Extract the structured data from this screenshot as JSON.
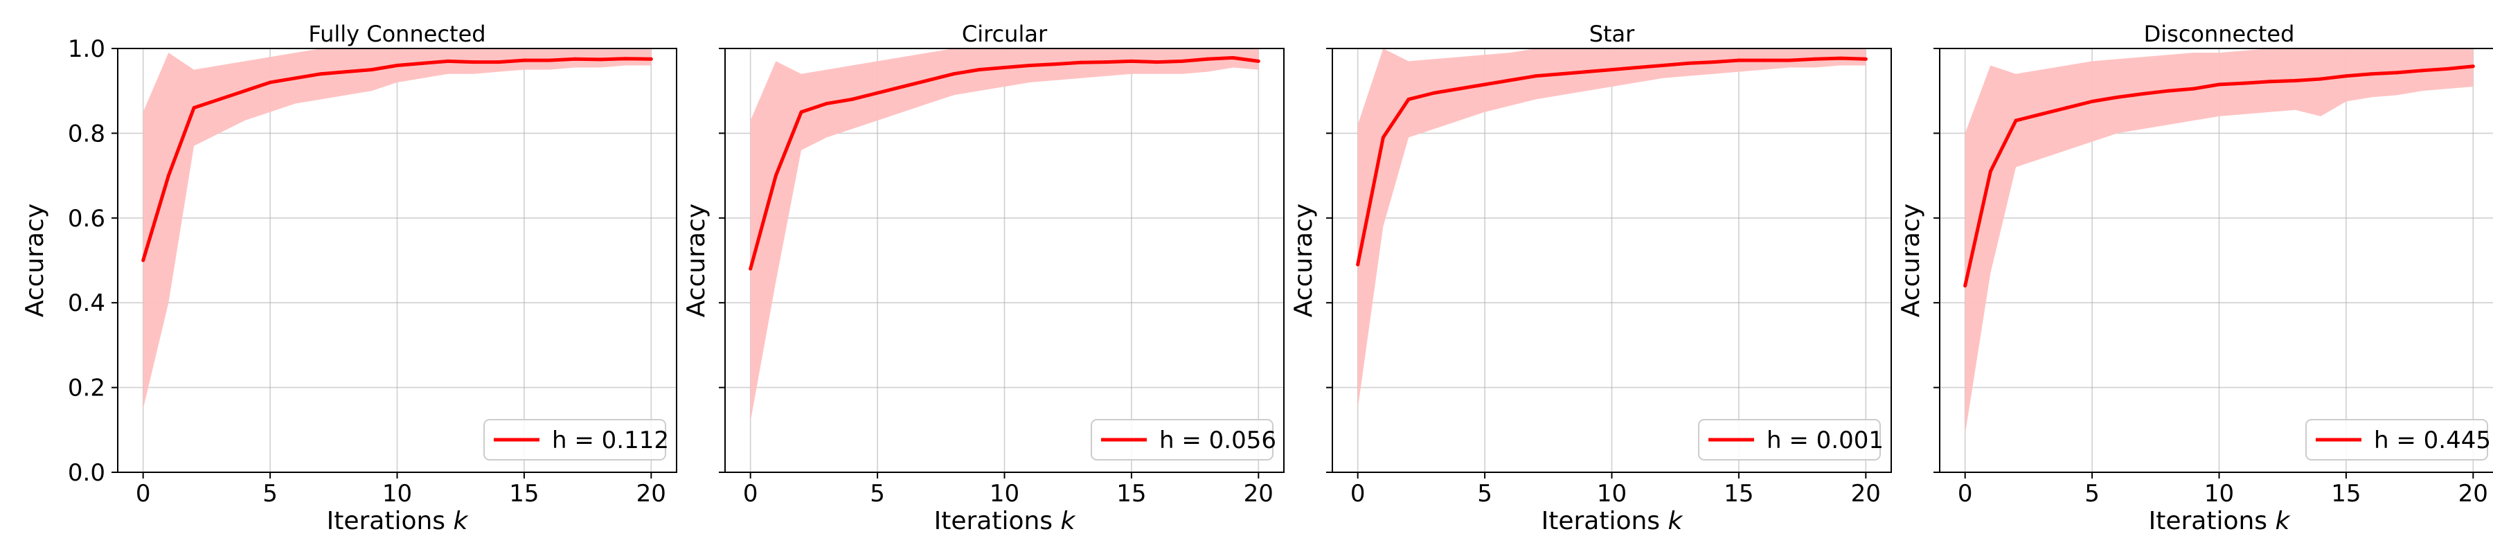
{
  "chart_data": [
    {
      "type": "line",
      "title": "Fully Connected",
      "xlabel": "Iterations",
      "xlabel_var": "k",
      "ylabel": "Accuracy",
      "xlim": [
        -1,
        21
      ],
      "ylim": [
        0,
        1
      ],
      "xticks": [
        0,
        5,
        10,
        15,
        20
      ],
      "yticks": [
        0.0,
        0.2,
        0.4,
        0.6,
        0.8,
        1.0
      ],
      "ytick_labels_visible": true,
      "grid": true,
      "legend_position": "lower-right",
      "series": [
        {
          "name": "h = 0.112",
          "color": "#ff0000",
          "band_color": "#ffbfbf",
          "x": [
            0,
            1,
            2,
            3,
            4,
            5,
            6,
            7,
            8,
            9,
            10,
            11,
            12,
            13,
            14,
            15,
            16,
            17,
            18,
            19,
            20
          ],
          "y": [
            0.5,
            0.7,
            0.86,
            0.88,
            0.9,
            0.92,
            0.93,
            0.94,
            0.945,
            0.95,
            0.96,
            0.965,
            0.97,
            0.968,
            0.968,
            0.972,
            0.972,
            0.975,
            0.974,
            0.976,
            0.975
          ],
          "lower": [
            0.15,
            0.4,
            0.77,
            0.8,
            0.83,
            0.85,
            0.87,
            0.88,
            0.89,
            0.9,
            0.92,
            0.93,
            0.94,
            0.94,
            0.945,
            0.95,
            0.95,
            0.955,
            0.955,
            0.96,
            0.96
          ],
          "upper": [
            0.85,
            0.99,
            0.95,
            0.96,
            0.97,
            0.98,
            0.99,
            1.0,
            1.0,
            1.0,
            1.0,
            1.0,
            1.0,
            1.0,
            1.0,
            1.0,
            1.0,
            1.0,
            1.0,
            1.0,
            1.0
          ]
        }
      ]
    },
    {
      "type": "line",
      "title": "Circular",
      "xlabel": "Iterations",
      "xlabel_var": "k",
      "ylabel": "Accuracy",
      "xlim": [
        -1,
        21
      ],
      "ylim": [
        0,
        1
      ],
      "xticks": [
        0,
        5,
        10,
        15,
        20
      ],
      "yticks": [
        0.0,
        0.2,
        0.4,
        0.6,
        0.8,
        1.0
      ],
      "ytick_labels_visible": false,
      "grid": true,
      "legend_position": "lower-right",
      "series": [
        {
          "name": "h = 0.056",
          "color": "#ff0000",
          "band_color": "#ffbfbf",
          "x": [
            0,
            1,
            2,
            3,
            4,
            5,
            6,
            7,
            8,
            9,
            10,
            11,
            12,
            13,
            14,
            15,
            16,
            17,
            18,
            19,
            20
          ],
          "y": [
            0.48,
            0.7,
            0.85,
            0.87,
            0.88,
            0.895,
            0.91,
            0.925,
            0.94,
            0.95,
            0.955,
            0.96,
            0.963,
            0.967,
            0.968,
            0.97,
            0.968,
            0.97,
            0.975,
            0.978,
            0.97
          ],
          "lower": [
            0.12,
            0.45,
            0.76,
            0.79,
            0.81,
            0.83,
            0.85,
            0.87,
            0.89,
            0.9,
            0.91,
            0.92,
            0.925,
            0.93,
            0.935,
            0.94,
            0.94,
            0.94,
            0.945,
            0.955,
            0.95
          ],
          "upper": [
            0.83,
            0.97,
            0.94,
            0.95,
            0.96,
            0.97,
            0.98,
            0.99,
            1.0,
            1.0,
            1.0,
            1.0,
            1.0,
            1.0,
            1.0,
            1.0,
            1.0,
            1.0,
            1.0,
            1.0,
            1.0
          ]
        }
      ]
    },
    {
      "type": "line",
      "title": "Star",
      "xlabel": "Iterations",
      "xlabel_var": "k",
      "ylabel": "Accuracy",
      "xlim": [
        -1,
        21
      ],
      "ylim": [
        0,
        1
      ],
      "xticks": [
        0,
        5,
        10,
        15,
        20
      ],
      "yticks": [
        0.0,
        0.2,
        0.4,
        0.6,
        0.8,
        1.0
      ],
      "ytick_labels_visible": false,
      "grid": true,
      "legend_position": "lower-right",
      "series": [
        {
          "name": "h = 0.001",
          "color": "#ff0000",
          "band_color": "#ffbfbf",
          "x": [
            0,
            1,
            2,
            3,
            4,
            5,
            6,
            7,
            8,
            9,
            10,
            11,
            12,
            13,
            14,
            15,
            16,
            17,
            18,
            19,
            20
          ],
          "y": [
            0.49,
            0.79,
            0.88,
            0.895,
            0.905,
            0.915,
            0.925,
            0.935,
            0.94,
            0.945,
            0.95,
            0.955,
            0.96,
            0.965,
            0.968,
            0.972,
            0.972,
            0.972,
            0.975,
            0.977,
            0.975
          ],
          "lower": [
            0.15,
            0.58,
            0.79,
            0.81,
            0.83,
            0.85,
            0.865,
            0.88,
            0.89,
            0.9,
            0.91,
            0.92,
            0.93,
            0.935,
            0.94,
            0.945,
            0.95,
            0.955,
            0.955,
            0.96,
            0.96
          ],
          "upper": [
            0.82,
            1.0,
            0.97,
            0.975,
            0.98,
            0.985,
            0.99,
            1.0,
            1.0,
            1.0,
            1.0,
            1.0,
            1.0,
            1.0,
            1.0,
            1.0,
            1.0,
            1.0,
            1.0,
            1.0,
            1.0
          ]
        }
      ]
    },
    {
      "type": "line",
      "title": "Disconnected",
      "xlabel": "Iterations",
      "xlabel_var": "k",
      "ylabel": "Accuracy",
      "xlim": [
        -1,
        21
      ],
      "ylim": [
        0,
        1
      ],
      "xticks": [
        0,
        5,
        10,
        15,
        20
      ],
      "yticks": [
        0.0,
        0.2,
        0.4,
        0.6,
        0.8,
        1.0
      ],
      "ytick_labels_visible": false,
      "grid": true,
      "legend_position": "lower-right",
      "series": [
        {
          "name": "h = 0.445",
          "color": "#ff0000",
          "band_color": "#ffbfbf",
          "x": [
            0,
            1,
            2,
            3,
            4,
            5,
            6,
            7,
            8,
            9,
            10,
            11,
            12,
            13,
            14,
            15,
            16,
            17,
            18,
            19,
            20
          ],
          "y": [
            0.44,
            0.71,
            0.83,
            0.845,
            0.86,
            0.875,
            0.885,
            0.893,
            0.9,
            0.905,
            0.915,
            0.918,
            0.922,
            0.924,
            0.928,
            0.935,
            0.94,
            0.943,
            0.948,
            0.952,
            0.958
          ],
          "lower": [
            0.09,
            0.47,
            0.72,
            0.74,
            0.76,
            0.78,
            0.8,
            0.81,
            0.82,
            0.83,
            0.84,
            0.845,
            0.85,
            0.855,
            0.84,
            0.875,
            0.885,
            0.89,
            0.9,
            0.905,
            0.91
          ],
          "upper": [
            0.8,
            0.96,
            0.94,
            0.95,
            0.96,
            0.97,
            0.975,
            0.98,
            0.985,
            0.99,
            0.99,
            0.995,
            1.0,
            1.0,
            1.0,
            1.0,
            1.0,
            1.0,
            1.0,
            1.0,
            1.0
          ]
        }
      ]
    }
  ]
}
